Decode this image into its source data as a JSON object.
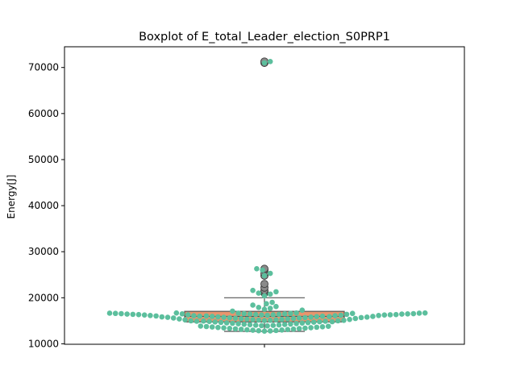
{
  "chart_data": {
    "type": "box-swarm",
    "title": "Boxplot of E_total_Leader_election_S0PRP1",
    "xlabel": "",
    "ylabel": "Energy[J]",
    "ylim": [
      9900,
      74500
    ],
    "yticks": [
      {
        "value": 10000,
        "label": "10000"
      },
      {
        "value": 20000,
        "label": "20000"
      },
      {
        "value": 30000,
        "label": "30000"
      },
      {
        "value": 40000,
        "label": "40000"
      },
      {
        "value": 50000,
        "label": "50000"
      },
      {
        "value": 60000,
        "label": "60000"
      },
      {
        "value": 70000,
        "label": "70000"
      }
    ],
    "grid": false,
    "box": {
      "q1": 14750,
      "median": 15950,
      "q3": 17050,
      "whisker_low": 12700,
      "whisker_high": 20000,
      "fill": "#e8956d",
      "edge": "#555555"
    },
    "outliers": [
      21000,
      21300,
      21600,
      22200,
      23000,
      24800,
      25300,
      26000,
      26300,
      71000,
      71300
    ],
    "swarm_color": "#5cbf9d",
    "swarm_values": [
      16700,
      16650,
      16600,
      16550,
      16500,
      16450,
      16400,
      16350,
      16300,
      16250,
      16200,
      16150,
      16100,
      16050,
      16000,
      15950,
      15900,
      15850,
      15800,
      15750,
      15700,
      15650,
      15600,
      15550,
      15500,
      15450,
      15400,
      15350,
      15300,
      15250,
      15200,
      15150,
      15100,
      15050,
      15000,
      14950,
      14900,
      14850,
      14800,
      14750,
      14700,
      14650,
      14600,
      14550,
      14500,
      14450,
      14400,
      14350,
      14300,
      14250,
      14200,
      14150,
      14100,
      14050,
      14000,
      13950,
      13900,
      13850,
      13800,
      13750,
      13700,
      13650,
      13600,
      13550,
      13500,
      13450,
      13400,
      13350,
      13300,
      13250,
      13200,
      13150,
      13100,
      13050,
      13000,
      12950,
      12900,
      12850,
      12800,
      12750,
      16700,
      16650,
      16600,
      16550,
      16500,
      16450,
      16400,
      16350,
      16300,
      16250,
      16200,
      16150,
      16100,
      16050,
      16000,
      15950,
      15900,
      15850,
      15800,
      15750,
      16700,
      16650,
      16600,
      16550,
      16500,
      16450,
      16400,
      16350,
      16300,
      16250,
      15700,
      15600,
      15500,
      15400,
      15300,
      15200,
      15100,
      15000,
      14900,
      14800,
      17100,
      17300,
      17500,
      17700,
      17900,
      18100,
      18400,
      18700,
      19000,
      20400,
      20800,
      21000,
      21300,
      21600,
      24800,
      25300,
      26000,
      26300,
      71000,
      71300
    ]
  }
}
